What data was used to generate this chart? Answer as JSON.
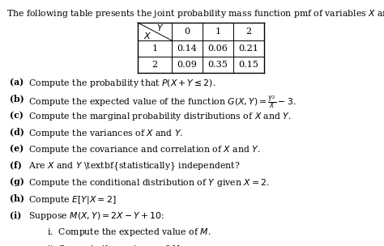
{
  "title": "The following table presents the joint probability mass function pmf of variables $X$ and $Y$.",
  "col_headers": [
    "0",
    "1",
    "2"
  ],
  "row_headers": [
    "1",
    "2"
  ],
  "values": [
    [
      "0.14",
      "0.06",
      "0.21"
    ],
    [
      "0.09",
      "0.35",
      "0.15"
    ]
  ],
  "background_color": "#ffffff",
  "questions": [
    [
      "(a)",
      " Compute the probability that $P(X + Y \\leq 2)$."
    ],
    [
      "(b)",
      " Compute the expected value of the function $G(X, Y) = \\frac{Y^2}{X} - 3$."
    ],
    [
      "(c)",
      " Compute the marginal probability distributions of $X$ and $Y$."
    ],
    [
      "(d)",
      " Compute the variances of $X$ and $Y$."
    ],
    [
      "(e)",
      " Compute the covariance and correlation of $X$ and $Y$."
    ],
    [
      "(f)",
      " Are $X$ and $Y$ \\textbf{statistically} independent?"
    ],
    [
      "(g)",
      " Compute the conditional distribution of $Y$ given $X = 2$."
    ],
    [
      "(h)",
      " Compute $E[Y|X = 2]$"
    ],
    [
      "(i)",
      " Suppose $M(X, Y) = 2X - Y + 10$:"
    ]
  ],
  "sub_questions": [
    "i.  Compute the expected value of $M$.",
    "ii. Compute the variance of $M$."
  ]
}
